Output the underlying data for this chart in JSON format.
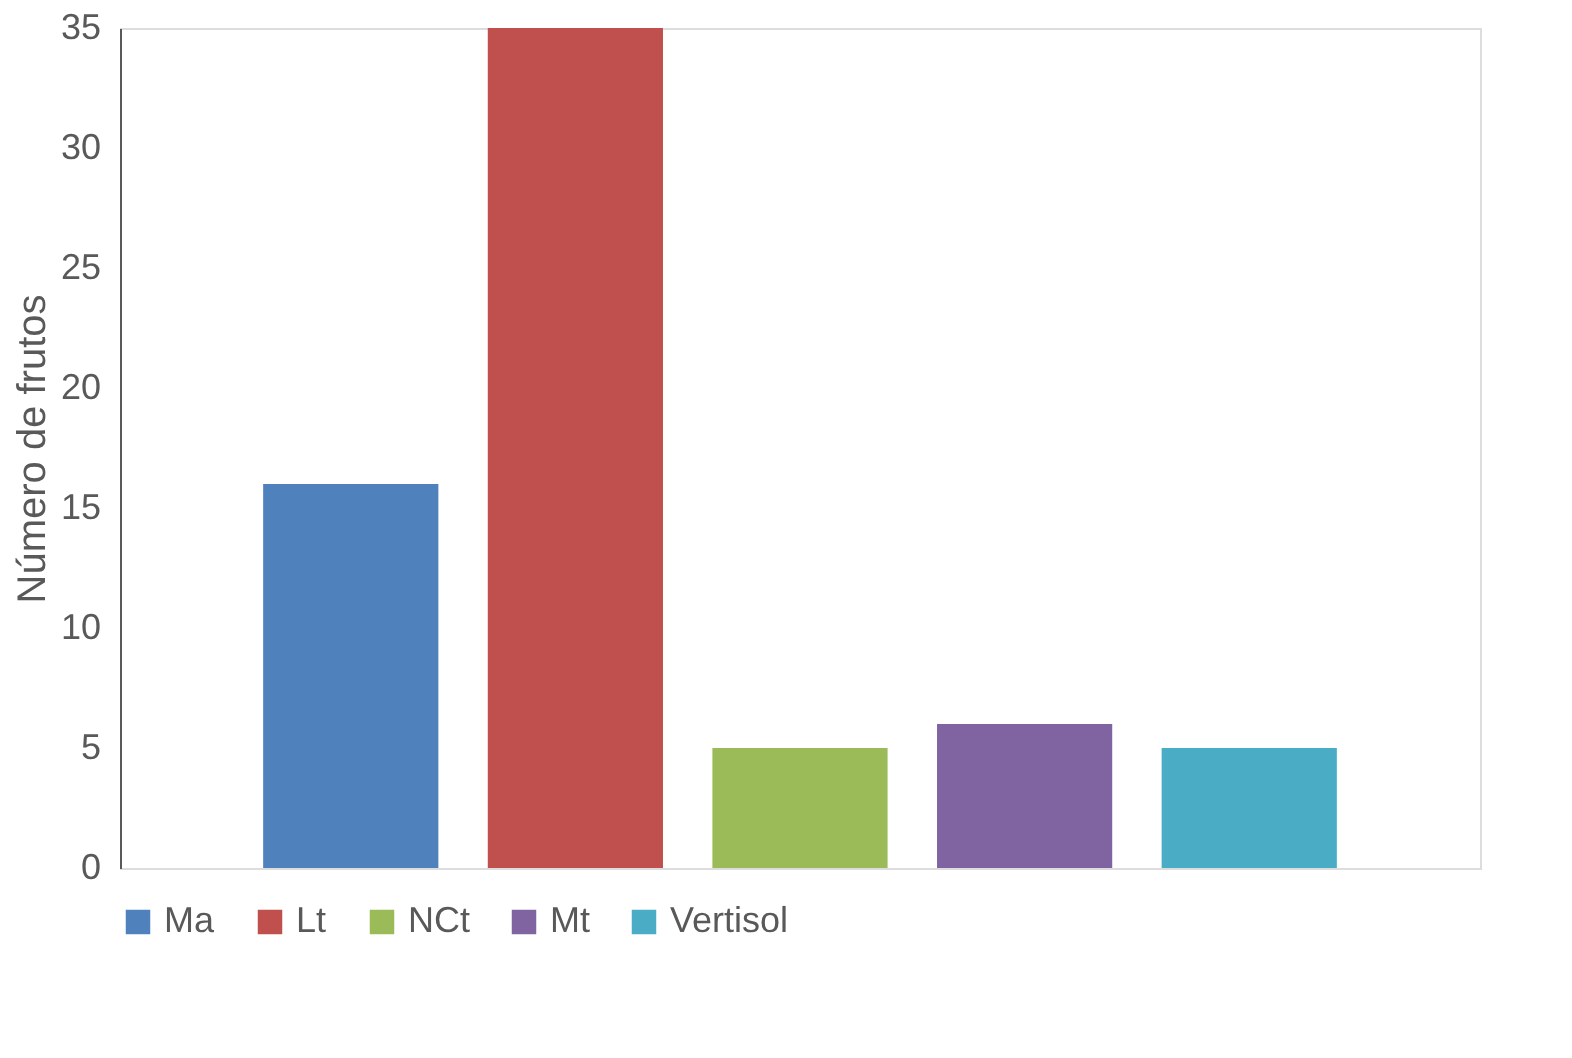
{
  "chart_data": {
    "type": "bar",
    "ylabel": "Número de frutos",
    "categories": [
      null
    ],
    "series": [
      {
        "name": "Ma",
        "color": "#4f81bd",
        "values": [
          16
        ]
      },
      {
        "name": "Lt",
        "color": "#c0504d",
        "values": [
          35
        ]
      },
      {
        "name": "NCt",
        "color": "#9bbb59",
        "values": [
          5
        ]
      },
      {
        "name": "Mt",
        "color": "#8064a2",
        "values": [
          6
        ]
      },
      {
        "name": "Vertisol",
        "color": "#4bacc6",
        "values": [
          5
        ]
      }
    ],
    "ylim": [
      0,
      35
    ],
    "yticks": [
      0,
      5,
      10,
      15,
      20,
      25,
      30,
      35
    ],
    "grid": false,
    "legend": "bottom",
    "tick_labels": "y"
  }
}
